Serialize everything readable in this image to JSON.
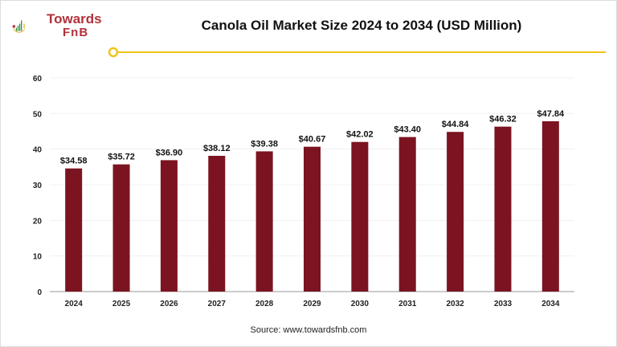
{
  "logo": {
    "line1": "Towards",
    "line2": "FnB"
  },
  "accent_line_color": "#f0c419",
  "chart_data": {
    "type": "bar",
    "title": "Canola Oil Market Size 2024 to 2034 (USD Million)",
    "categories": [
      "2024",
      "2025",
      "2026",
      "2027",
      "2028",
      "2029",
      "2030",
      "2031",
      "2032",
      "2033",
      "2034"
    ],
    "values": [
      34.58,
      35.72,
      36.9,
      38.12,
      39.38,
      40.67,
      42.02,
      43.4,
      44.84,
      46.32,
      47.84
    ],
    "data_labels": [
      "$34.58",
      "$35.72",
      "$36.90",
      "$38.12",
      "$39.38",
      "$40.67",
      "$42.02",
      "$43.40",
      "$44.84",
      "$46.32",
      "$47.84"
    ],
    "ylim": [
      0,
      60
    ],
    "yticks": [
      0,
      10,
      20,
      30,
      40,
      50,
      60
    ],
    "grid": true,
    "bar_color": "#7b1420",
    "xlabel": "",
    "ylabel": ""
  },
  "source": "Source: www.towardsfnb.com"
}
